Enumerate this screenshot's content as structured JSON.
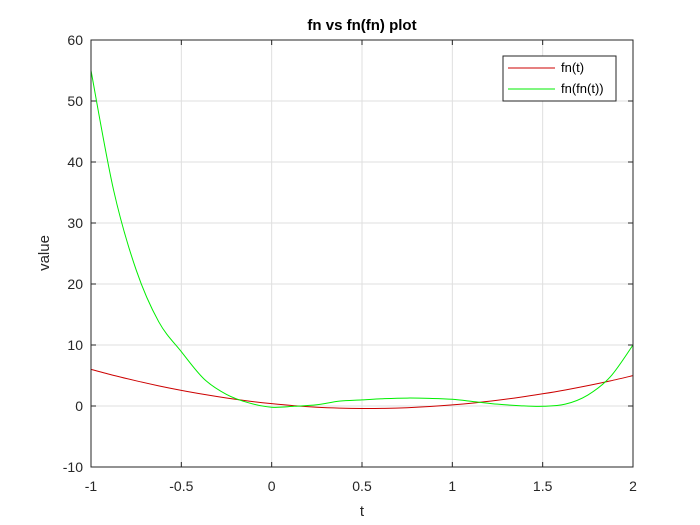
{
  "chart_data": {
    "type": "line",
    "title": "fn vs fn(fn) plot",
    "xlabel": "t",
    "ylabel": "value",
    "xlim": [
      -1,
      2
    ],
    "ylim": [
      -10,
      60
    ],
    "xticks": [
      -1,
      -0.5,
      0,
      0.5,
      1,
      1.5,
      2
    ],
    "xtick_labels": [
      "-1",
      "-0.5",
      "0",
      "0.5",
      "1",
      "1.5",
      "2"
    ],
    "yticks": [
      -10,
      0,
      10,
      20,
      30,
      40,
      50,
      60
    ],
    "ytick_labels": [
      "-10",
      "0",
      "10",
      "20",
      "30",
      "40",
      "50",
      "60"
    ],
    "grid": true,
    "legend_position": "top-right",
    "x": [
      -1,
      -0.875,
      -0.75,
      -0.625,
      -0.5,
      -0.375,
      -0.25,
      -0.125,
      0,
      0.125,
      0.25,
      0.375,
      0.5,
      0.625,
      0.75,
      0.875,
      1,
      1.125,
      1.25,
      1.375,
      1.5,
      1.625,
      1.75,
      1.875,
      2
    ],
    "series": [
      {
        "name": "fn(t)",
        "color": "#cc0000",
        "values": [
          6,
          5.02,
          4.13,
          3.3,
          2.56,
          1.9,
          1.31,
          0.8,
          0.38,
          0.04,
          -0.2,
          -0.34,
          -0.4,
          -0.38,
          -0.28,
          -0.09,
          0.18,
          0.52,
          0.94,
          1.43,
          2.0,
          2.63,
          3.34,
          4.12,
          4.98
        ]
      },
      {
        "name": "fn(fn(t))",
        "color": "#00ee00",
        "values": [
          55,
          35.4,
          22.3,
          13.8,
          8.9,
          4.45,
          1.9,
          0.5,
          -0.2,
          -0.05,
          0.2,
          0.8,
          1.0,
          1.2,
          1.3,
          1.25,
          1.1,
          0.7,
          0.3,
          0.05,
          -0.05,
          0.3,
          1.8,
          4.8,
          10.0
        ]
      }
    ]
  }
}
